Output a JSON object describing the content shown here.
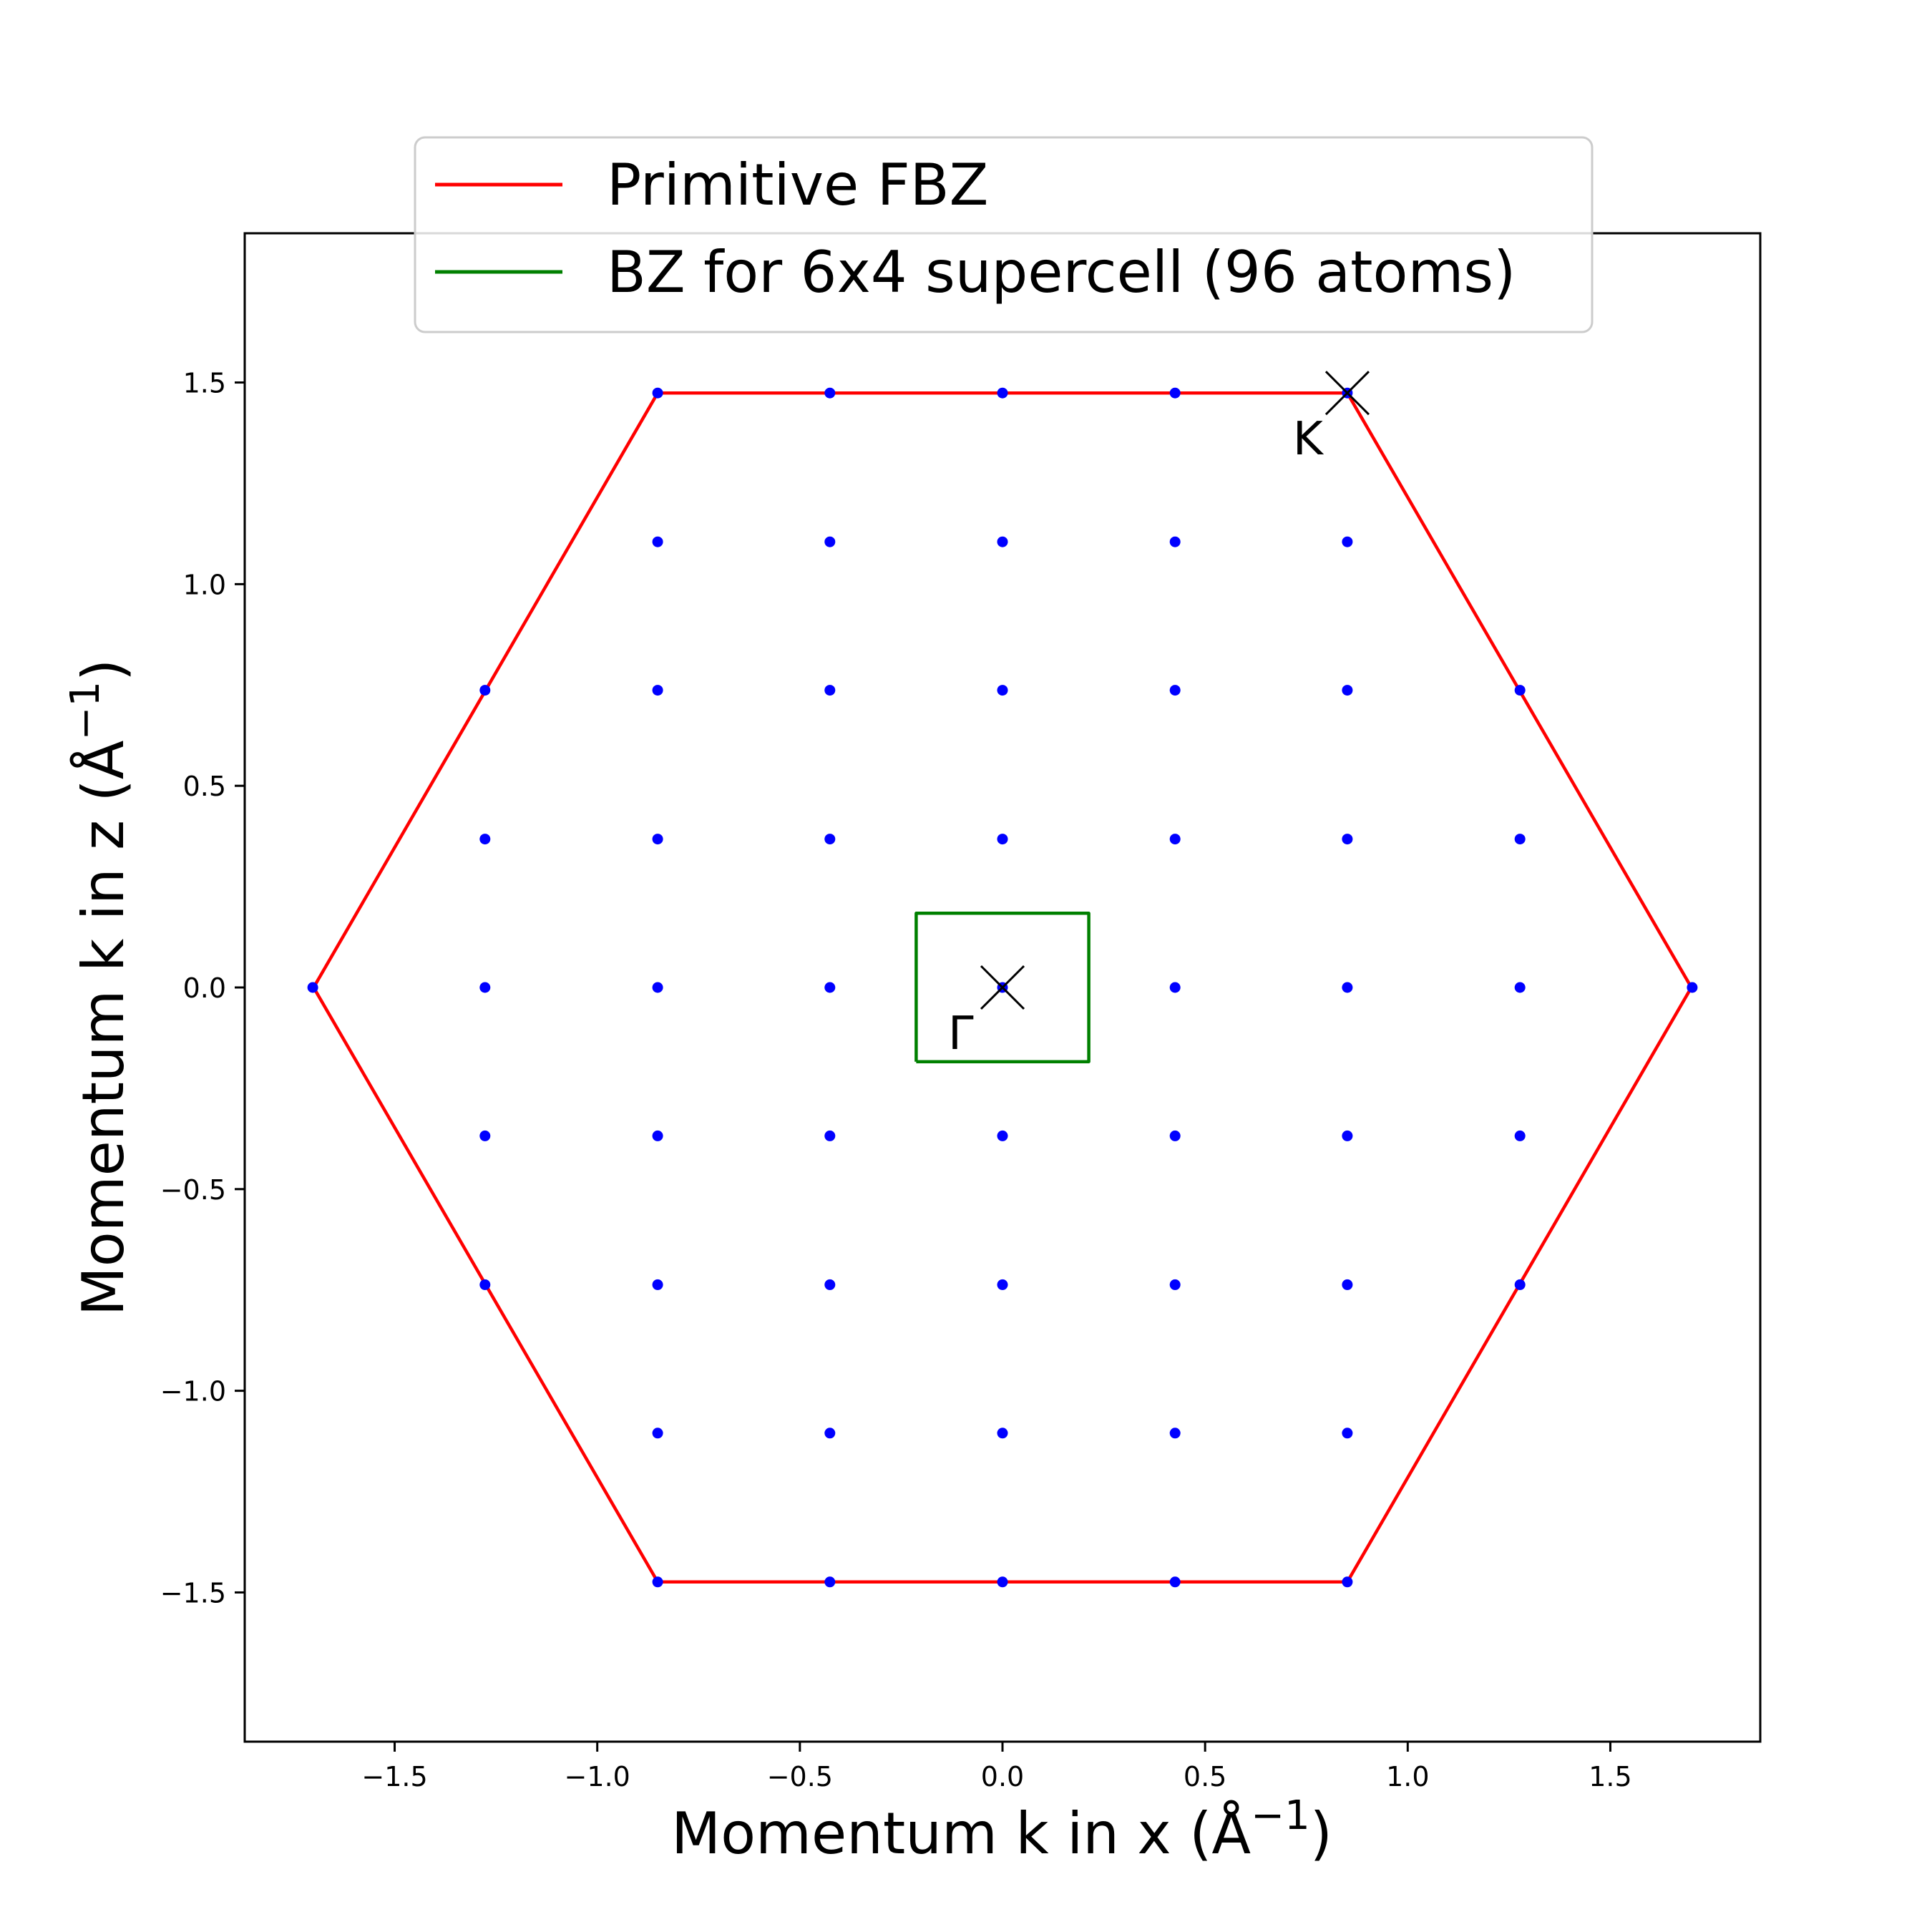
{
  "chart_data": {
    "type": "scatter",
    "title": "",
    "xlabel": "Momentum k in x (Å",
    "ylabel": "Momentum k in z (Å",
    "label_unit_exponent": "−1",
    "label_close": ")",
    "xlim": [
      -1.87,
      1.87
    ],
    "ylim": [
      -1.87,
      1.87
    ],
    "xticks": [
      -1.5,
      -1.0,
      -0.5,
      0.0,
      0.5,
      1.0,
      1.5
    ],
    "yticks": [
      -1.5,
      -1.0,
      -0.5,
      0.0,
      0.5,
      1.0,
      1.5
    ],
    "xtick_labels": [
      "−1.5",
      "−1.0",
      "−0.5",
      "0.0",
      "0.5",
      "1.0",
      "1.5"
    ],
    "ytick_labels": [
      "−1.5",
      "−1.0",
      "−0.5",
      "0.0",
      "0.5",
      "1.0",
      "1.5"
    ],
    "grid": false,
    "legend_position": "top-center",
    "series": [
      {
        "name": "Primitive FBZ",
        "kind": "line",
        "color": "#ff0000",
        "x": [
          -1.7,
          -0.851,
          0.851,
          1.7,
          0.851,
          -0.851,
          -1.7
        ],
        "y": [
          0.0,
          1.474,
          1.474,
          0.0,
          -1.474,
          -1.474,
          0.0
        ]
      },
      {
        "name": "BZ for 6x4 supercell (96 atoms)",
        "kind": "line",
        "color": "#008000",
        "x": [
          -0.213,
          0.213,
          0.213,
          -0.213,
          -0.213
        ],
        "y": [
          -0.184,
          -0.184,
          0.184,
          0.184,
          -0.184
        ]
      },
      {
        "kind": "points",
        "color": "#0000ff",
        "x_rows": [
          [
            -0.851,
            -0.426,
            0.0,
            0.426,
            0.851
          ],
          [
            -0.851,
            -0.426,
            0.0,
            0.426,
            0.851
          ],
          [
            -1.277,
            -0.851,
            -0.426,
            0.0,
            0.426,
            0.851,
            1.277
          ],
          [
            -1.277,
            -0.851,
            -0.426,
            0.0,
            0.426,
            0.851,
            1.277
          ],
          [
            -1.702,
            -1.277,
            -0.851,
            -0.426,
            0.0,
            0.426,
            0.851,
            1.277,
            1.702
          ],
          [
            -1.277,
            -0.851,
            -0.426,
            0.0,
            0.426,
            0.851,
            1.277
          ],
          [
            -1.277,
            -0.851,
            -0.426,
            0.0,
            0.426,
            0.851,
            1.277
          ],
          [
            -0.851,
            -0.426,
            0.0,
            0.426,
            0.851
          ],
          [
            -0.851,
            -0.426,
            0.0,
            0.426,
            0.851
          ]
        ],
        "y_rows": [
          1.474,
          1.105,
          0.737,
          0.368,
          0.0,
          -0.368,
          -0.737,
          -1.105,
          -1.474
        ]
      }
    ],
    "annotations": [
      {
        "label": "K",
        "x": 0.851,
        "y": 1.474,
        "marker": "x"
      },
      {
        "label": "Γ",
        "x": 0.0,
        "y": 0.0,
        "marker": "x"
      }
    ]
  }
}
